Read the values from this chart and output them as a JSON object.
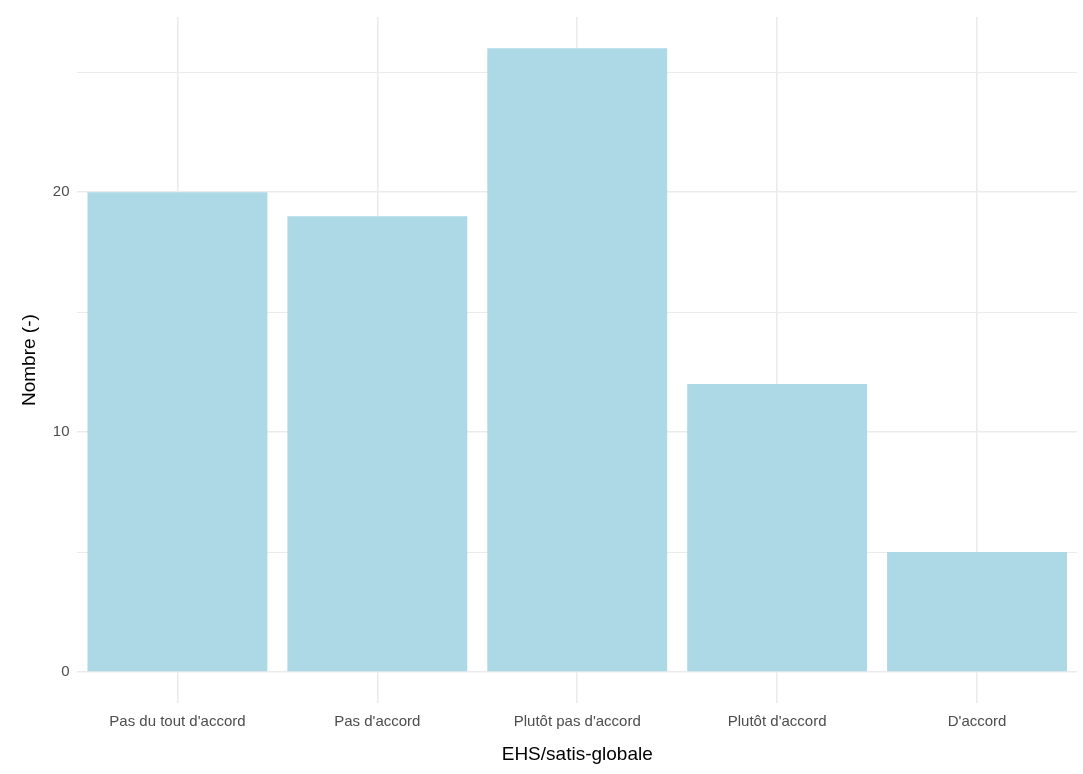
{
  "chart_data": {
    "type": "bar",
    "xlabel": "EHS/satis-globale",
    "ylabel": "Nombre (-)",
    "categories": [
      "Pas du tout d'accord",
      "Pas d'accord",
      "Plutôt pas d'accord",
      "Plutôt d'accord",
      "D'accord"
    ],
    "values": [
      20,
      19,
      26,
      12,
      5
    ],
    "color": "#add8e6",
    "ylim": [
      -1.3,
      27.3
    ],
    "yticks": [
      0,
      {
        "value": 5,
        "label": null
      },
      10,
      {
        "value": 15,
        "label": null
      },
      20,
      {
        "value": 25,
        "label": null
      }
    ],
    "grid": true,
    "legend": false
  }
}
